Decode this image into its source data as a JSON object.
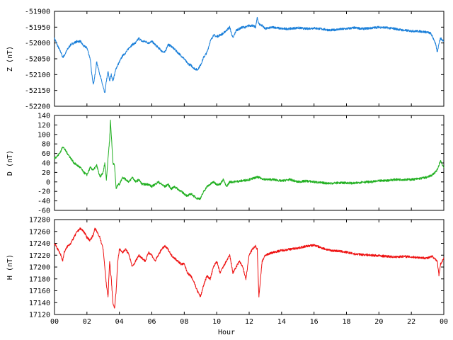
{
  "chart_data": [
    {
      "type": "line",
      "ylabel": "Z (nT)",
      "color": "#1a7fd9",
      "ylim": [
        -52200,
        -51900
      ],
      "yticks": [
        -51900,
        -51950,
        -52000,
        -52050,
        -52100,
        -52150,
        -52200
      ],
      "xlim": [
        0,
        24
      ],
      "grid": false,
      "series": [
        {
          "x": [
            0,
            0.2,
            0.4,
            0.5,
            0.6,
            0.8,
            1,
            1.2,
            1.4,
            1.6,
            1.8,
            2,
            2.2,
            2.3,
            2.4,
            2.5,
            2.6,
            2.8,
            3,
            3.1,
            3.2,
            3.3,
            3.4,
            3.5,
            3.6,
            3.8,
            4,
            4.2,
            4.4,
            4.6,
            4.8,
            5,
            5.2,
            5.4,
            5.6,
            5.8,
            6,
            6.2,
            6.4,
            6.6,
            6.8,
            7,
            7.2,
            7.4,
            7.6,
            7.8,
            8,
            8.2,
            8.4,
            8.6,
            8.8,
            9,
            9.2,
            9.4,
            9.6,
            9.8,
            10,
            10.2,
            10.4,
            10.6,
            10.8,
            11,
            11.2,
            11.4,
            11.6,
            11.8,
            12,
            12.2,
            12.4,
            12.5,
            12.6,
            12.8,
            13,
            13.5,
            14,
            14.5,
            15,
            15.5,
            16,
            16.5,
            17,
            17.5,
            18,
            18.5,
            19,
            19.5,
            20,
            20.5,
            21,
            21.5,
            22,
            22.5,
            23,
            23.2,
            23.4,
            23.5,
            23.6,
            23.7,
            23.8,
            24
          ],
          "values": [
            -51985,
            -52010,
            -52030,
            -52045,
            -52040,
            -52020,
            -52005,
            -52000,
            -51995,
            -51995,
            -52010,
            -52015,
            -52050,
            -52100,
            -52130,
            -52100,
            -52060,
            -52100,
            -52140,
            -52160,
            -52120,
            -52090,
            -52120,
            -52100,
            -52120,
            -52080,
            -52060,
            -52040,
            -52030,
            -52015,
            -52005,
            -52000,
            -51985,
            -51995,
            -51995,
            -52000,
            -51995,
            -52005,
            -52015,
            -52025,
            -52030,
            -52005,
            -52010,
            -52020,
            -52030,
            -52040,
            -52050,
            -52065,
            -52070,
            -52080,
            -52085,
            -52070,
            -52045,
            -52030,
            -51995,
            -51975,
            -51980,
            -51975,
            -51970,
            -51960,
            -51950,
            -51985,
            -51960,
            -51955,
            -51950,
            -51950,
            -51945,
            -51945,
            -51950,
            -51920,
            -51940,
            -51945,
            -51955,
            -51950,
            -51955,
            -51955,
            -51952,
            -51955,
            -51953,
            -51956,
            -51960,
            -51957,
            -51955,
            -51952,
            -51955,
            -51953,
            -51950,
            -51952,
            -51955,
            -51960,
            -51962,
            -51963,
            -51966,
            -51970,
            -51990,
            -52005,
            -52030,
            -52000,
            -51985,
            -51995
          ]
        }
      ]
    },
    {
      "type": "line",
      "ylabel": "D (nT)",
      "color": "#22b022",
      "ylim": [
        -60,
        140
      ],
      "yticks": [
        140,
        120,
        100,
        80,
        60,
        40,
        20,
        0,
        -20,
        -40,
        -60
      ],
      "xlim": [
        0,
        24
      ],
      "grid": false,
      "series": [
        {
          "x": [
            0,
            0.2,
            0.4,
            0.5,
            0.6,
            0.8,
            1,
            1.2,
            1.4,
            1.6,
            1.8,
            2,
            2.2,
            2.4,
            2.6,
            2.8,
            3,
            3.1,
            3.2,
            3.3,
            3.4,
            3.45,
            3.5,
            3.55,
            3.6,
            3.7,
            3.8,
            3.9,
            4,
            4.2,
            4.4,
            4.6,
            4.8,
            5,
            5.2,
            5.4,
            5.6,
            5.8,
            6,
            6.2,
            6.4,
            6.6,
            6.8,
            7,
            7.2,
            7.4,
            7.6,
            7.8,
            8,
            8.2,
            8.4,
            8.6,
            8.8,
            9,
            9.2,
            9.4,
            9.6,
            9.8,
            10,
            10.2,
            10.4,
            10.6,
            10.8,
            11,
            11.5,
            12,
            12.5,
            13,
            13.5,
            14,
            14.5,
            15,
            15.5,
            16,
            16.5,
            17,
            17.5,
            18,
            18.5,
            19,
            19.5,
            20,
            20.5,
            21,
            21.5,
            22,
            22.5,
            23,
            23.3,
            23.6,
            23.8,
            24
          ],
          "values": [
            50,
            55,
            65,
            75,
            70,
            60,
            50,
            40,
            35,
            30,
            20,
            15,
            30,
            25,
            35,
            10,
            20,
            40,
            5,
            50,
            90,
            130,
            100,
            70,
            40,
            35,
            -15,
            -5,
            -5,
            10,
            5,
            0,
            10,
            0,
            5,
            -5,
            -5,
            -5,
            -10,
            -5,
            0,
            -5,
            -10,
            -5,
            -15,
            -10,
            -15,
            -20,
            -25,
            -30,
            -25,
            -30,
            -35,
            -35,
            -20,
            -10,
            -5,
            0,
            -5,
            -5,
            5,
            -10,
            0,
            0,
            2,
            5,
            10,
            5,
            5,
            2,
            5,
            0,
            2,
            0,
            -2,
            -3,
            -2,
            -2,
            -3,
            0,
            0,
            2,
            3,
            5,
            5,
            5,
            7,
            10,
            15,
            25,
            45,
            30
          ]
        }
      ]
    },
    {
      "type": "line",
      "ylabel": "H (nT)",
      "xlabel": "Hour",
      "color": "#ee1111",
      "ylim": [
        17120,
        17280
      ],
      "yticks": [
        17280,
        17260,
        17240,
        17220,
        17200,
        17180,
        17160,
        17140,
        17120
      ],
      "xlim": [
        0,
        24
      ],
      "xticks": [
        "00",
        "02",
        "04",
        "06",
        "08",
        "10",
        "12",
        "14",
        "16",
        "18",
        "20",
        "22",
        "00"
      ],
      "grid": false,
      "series": [
        {
          "x": [
            0,
            0.2,
            0.4,
            0.5,
            0.6,
            0.8,
            1,
            1.2,
            1.4,
            1.6,
            1.8,
            2,
            2.2,
            2.4,
            2.5,
            2.6,
            2.8,
            3,
            3.1,
            3.2,
            3.3,
            3.4,
            3.5,
            3.6,
            3.7,
            3.8,
            3.9,
            4,
            4.2,
            4.4,
            4.6,
            4.8,
            5,
            5.2,
            5.4,
            5.6,
            5.8,
            6,
            6.2,
            6.4,
            6.6,
            6.8,
            7,
            7.2,
            7.4,
            7.6,
            7.8,
            8,
            8.2,
            8.4,
            8.6,
            8.8,
            9,
            9.2,
            9.4,
            9.6,
            9.8,
            10,
            10.2,
            10.4,
            10.6,
            10.8,
            11,
            11.2,
            11.4,
            11.6,
            11.8,
            12,
            12.2,
            12.4,
            12.5,
            12.6,
            12.8,
            13,
            13.5,
            14,
            14.5,
            15,
            15.5,
            16,
            16.5,
            17,
            17.5,
            18,
            18.5,
            19,
            19.5,
            20,
            20.5,
            21,
            21.5,
            22,
            22.5,
            23,
            23.3,
            23.6,
            23.7,
            23.8,
            24
          ],
          "values": [
            17240,
            17230,
            17220,
            17210,
            17225,
            17235,
            17240,
            17250,
            17260,
            17265,
            17260,
            17250,
            17245,
            17255,
            17265,
            17260,
            17250,
            17230,
            17200,
            17170,
            17150,
            17210,
            17180,
            17140,
            17130,
            17160,
            17210,
            17230,
            17225,
            17230,
            17220,
            17200,
            17210,
            17220,
            17215,
            17210,
            17225,
            17220,
            17210,
            17220,
            17230,
            17235,
            17230,
            17220,
            17215,
            17210,
            17205,
            17205,
            17190,
            17185,
            17175,
            17160,
            17150,
            17170,
            17185,
            17180,
            17200,
            17210,
            17190,
            17200,
            17210,
            17220,
            17190,
            17200,
            17210,
            17200,
            17180,
            17220,
            17230,
            17235,
            17230,
            17150,
            17210,
            17220,
            17225,
            17228,
            17230,
            17232,
            17235,
            17237,
            17232,
            17228,
            17227,
            17225,
            17222,
            17221,
            17220,
            17219,
            17218,
            17217,
            17218,
            17217,
            17216,
            17215,
            17218,
            17210,
            17185,
            17205,
            17215
          ]
        }
      ]
    }
  ]
}
